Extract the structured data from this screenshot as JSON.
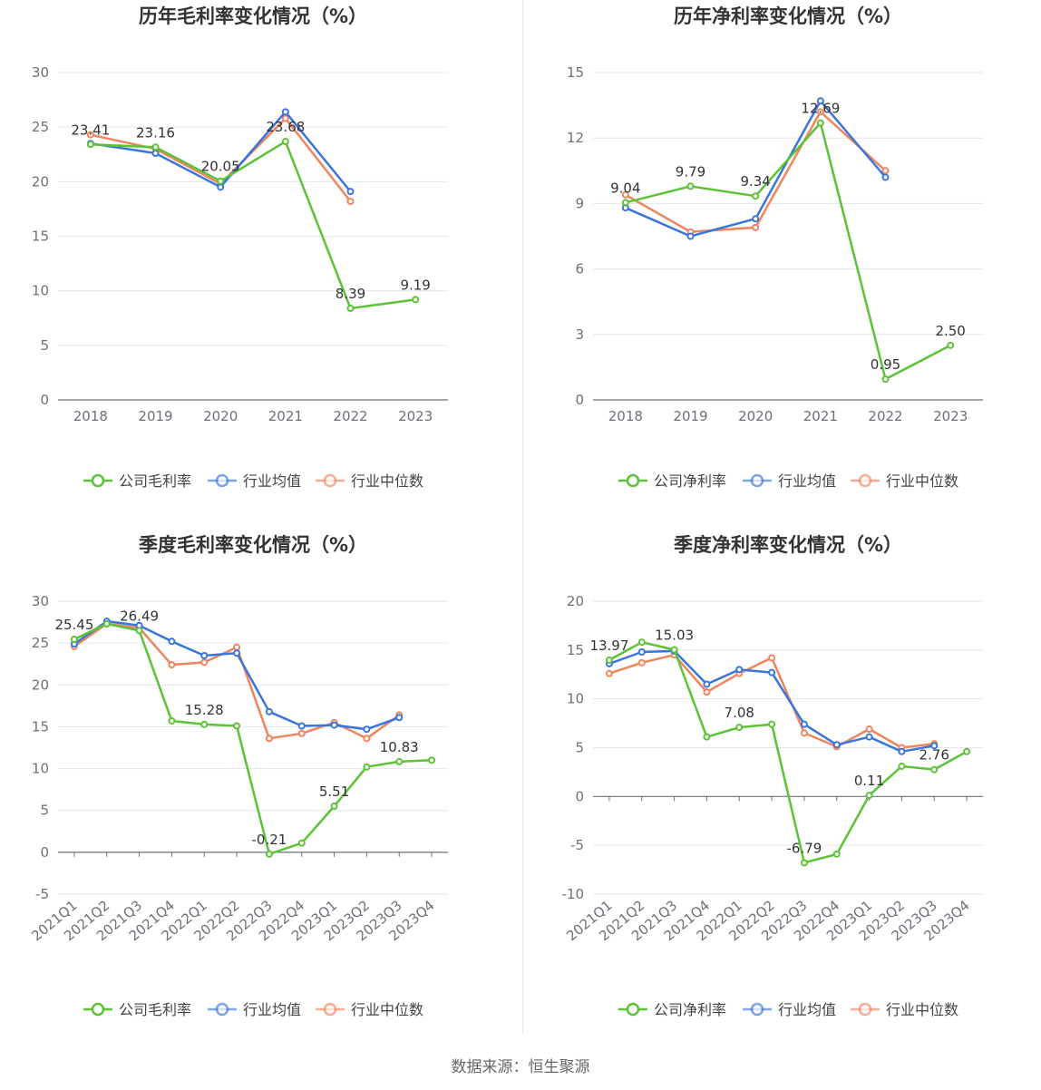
{
  "source_label": "数据来源：恒生聚源",
  "colors": {
    "company": "#5cc236",
    "industry_avg": "#3a75de",
    "industry_median": "#f0845c"
  },
  "chart_data": [
    {
      "type": "line",
      "title": "历年毛利率变化情况（%）",
      "categories": [
        "2018",
        "2019",
        "2020",
        "2021",
        "2022",
        "2023"
      ],
      "ylim": [
        0,
        30
      ],
      "yticks": [
        0,
        5,
        10,
        15,
        20,
        25,
        30
      ],
      "grid": true,
      "legend": "bottom",
      "series": [
        {
          "name": "公司毛利率",
          "values": [
            23.41,
            23.16,
            20.05,
            23.68,
            8.39,
            9.19
          ],
          "labels": [
            "23.41",
            "23.16",
            "20.05",
            "23.68",
            "8.39",
            "9.19"
          ]
        },
        {
          "name": "行业均值",
          "values": [
            23.5,
            22.6,
            19.5,
            26.4,
            19.1,
            null
          ]
        },
        {
          "name": "行业中位数",
          "values": [
            24.3,
            23.0,
            19.8,
            25.8,
            18.2,
            null
          ]
        }
      ]
    },
    {
      "type": "line",
      "title": "历年净利率变化情况（%）",
      "categories": [
        "2018",
        "2019",
        "2020",
        "2021",
        "2022",
        "2023"
      ],
      "ylim": [
        0,
        15
      ],
      "yticks": [
        0,
        3,
        6,
        9,
        12,
        15
      ],
      "grid": true,
      "legend": "bottom",
      "series": [
        {
          "name": "公司净利率",
          "values": [
            9.04,
            9.79,
            9.34,
            12.69,
            0.95,
            2.5
          ],
          "labels": [
            "9.04",
            "9.79",
            "9.34",
            "12.69",
            "0.95",
            "2.50"
          ]
        },
        {
          "name": "行业均值",
          "values": [
            8.8,
            7.5,
            8.3,
            13.7,
            10.2,
            null
          ]
        },
        {
          "name": "行业中位数",
          "values": [
            9.4,
            7.7,
            7.9,
            13.2,
            10.5,
            null
          ]
        }
      ]
    },
    {
      "type": "line",
      "title": "季度毛利率变化情况（%）",
      "categories": [
        "2021Q1",
        "2021Q2",
        "2021Q3",
        "2021Q4",
        "2022Q1",
        "2022Q2",
        "2022Q3",
        "2022Q4",
        "2023Q1",
        "2023Q2",
        "2023Q3",
        "2023Q4"
      ],
      "ylim": [
        -5,
        30
      ],
      "yticks": [
        -5,
        0,
        5,
        10,
        15,
        20,
        25,
        30
      ],
      "grid": true,
      "legend": "bottom",
      "rotated_xticks": true,
      "series": [
        {
          "name": "公司毛利率",
          "values": [
            25.45,
            27.3,
            26.49,
            15.7,
            15.28,
            15.1,
            -0.21,
            1.1,
            5.51,
            10.2,
            10.83,
            11.0
          ],
          "labels": [
            "25.45",
            "",
            "26.49",
            "",
            "15.28",
            "",
            "-0.21",
            "",
            "5.51",
            "",
            "10.83",
            ""
          ]
        },
        {
          "name": "行业均值",
          "values": [
            24.9,
            27.6,
            27.1,
            25.2,
            23.5,
            23.8,
            16.8,
            15.1,
            15.2,
            14.7,
            16.1,
            null
          ]
        },
        {
          "name": "行业中位数",
          "values": [
            24.6,
            27.3,
            26.8,
            22.4,
            22.7,
            24.5,
            13.6,
            14.2,
            15.5,
            13.6,
            16.4,
            null
          ]
        }
      ]
    },
    {
      "type": "line",
      "title": "季度净利率变化情况（%）",
      "categories": [
        "2021Q1",
        "2021Q2",
        "2021Q3",
        "2021Q4",
        "2022Q1",
        "2022Q2",
        "2022Q3",
        "2022Q4",
        "2023Q1",
        "2023Q2",
        "2023Q3",
        "2023Q4"
      ],
      "ylim": [
        -10,
        20
      ],
      "yticks": [
        -10,
        -5,
        0,
        5,
        10,
        15,
        20
      ],
      "grid": true,
      "legend": "bottom",
      "rotated_xticks": true,
      "series": [
        {
          "name": "公司净利率",
          "values": [
            13.97,
            15.8,
            15.03,
            6.1,
            7.08,
            7.4,
            -6.79,
            -5.9,
            0.11,
            3.1,
            2.76,
            4.6
          ],
          "labels": [
            "13.97",
            "",
            "15.03",
            "",
            "7.08",
            "",
            "-6.79",
            "",
            "0.11",
            "",
            "2.76",
            ""
          ]
        },
        {
          "name": "行业均值",
          "values": [
            13.6,
            14.8,
            14.9,
            11.5,
            13.0,
            12.7,
            7.4,
            5.3,
            6.1,
            4.6,
            5.2,
            null
          ]
        },
        {
          "name": "行业中位数",
          "values": [
            12.6,
            13.7,
            14.5,
            10.7,
            12.6,
            14.2,
            6.5,
            5.1,
            6.9,
            5.0,
            5.4,
            null
          ]
        }
      ]
    }
  ]
}
